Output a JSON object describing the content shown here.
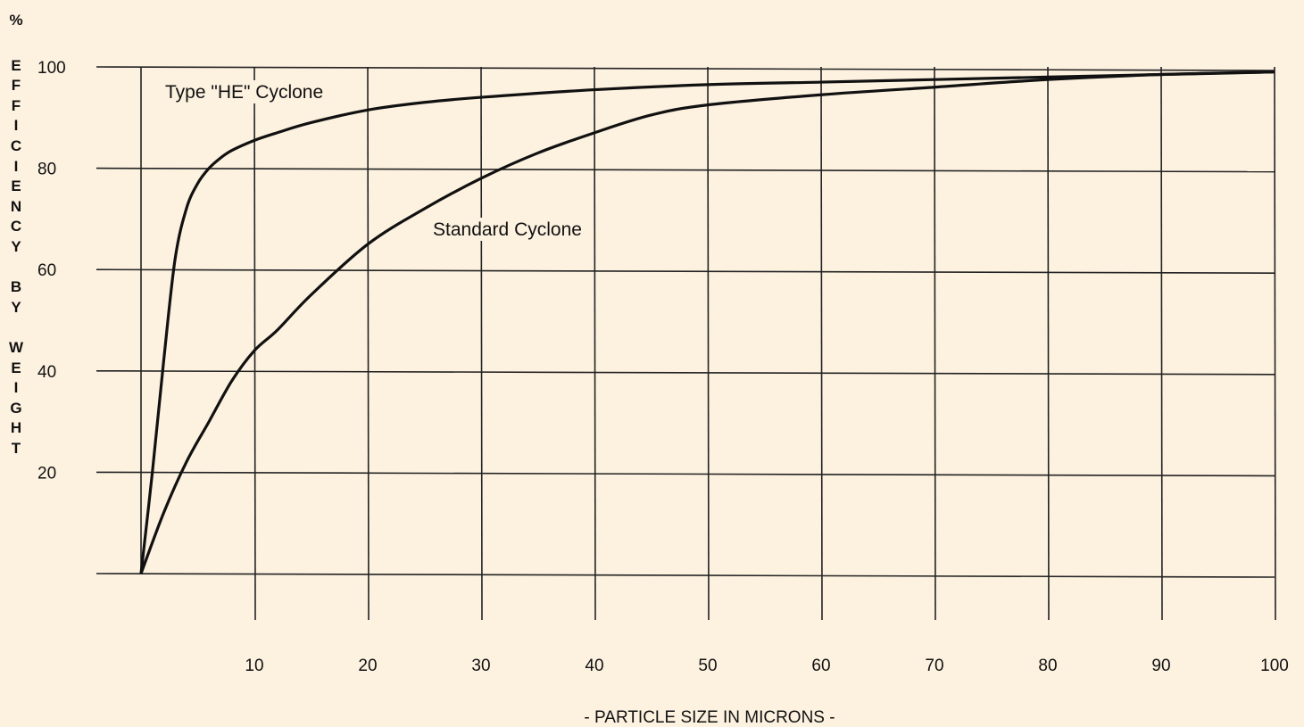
{
  "chart_data": {
    "type": "line",
    "title": "",
    "ylabel_unit": "%",
    "ylabel": "EFFICIENCY BY WEIGHT",
    "ylabel_lines": [
      "E",
      "F",
      "F",
      "I",
      "C",
      "I",
      "E",
      "N",
      "C",
      "Y",
      "",
      "B",
      "Y",
      "",
      "W",
      "E",
      "I",
      "G",
      "H",
      "T"
    ],
    "xlabel": "- PARTICLE SIZE IN MICRONS -",
    "xlim": [
      0,
      100
    ],
    "ylim": [
      0,
      100
    ],
    "x_ticks": [
      10,
      20,
      30,
      40,
      50,
      60,
      70,
      80,
      90,
      100
    ],
    "y_ticks": [
      20,
      40,
      60,
      80,
      100
    ],
    "y_tick_labels": [
      "20",
      "40",
      "60",
      "80",
      "100"
    ],
    "x_tick_labels": [
      "10",
      "20",
      "30",
      "40",
      "50",
      "60",
      "70",
      "80",
      "90",
      "100"
    ],
    "grid": true,
    "series": [
      {
        "name": "Type \"HE\" Cyclone",
        "x": [
          0,
          1,
          2,
          3,
          4,
          5,
          6,
          7,
          8,
          10,
          12,
          15,
          20,
          25,
          30,
          40,
          50,
          60,
          70,
          80,
          90,
          100
        ],
        "y": [
          0,
          20,
          42,
          62,
          72,
          77,
          80,
          82,
          83.5,
          85.5,
          87,
          89,
          91.5,
          93,
          94,
          95.5,
          96.5,
          97,
          97.5,
          98,
          98.5,
          99
        ]
      },
      {
        "name": "Standard Cyclone",
        "x": [
          0,
          2,
          4,
          6,
          8,
          10,
          12,
          15,
          20,
          25,
          30,
          35,
          40,
          45,
          50,
          60,
          70,
          80,
          90,
          100
        ],
        "y": [
          0,
          12,
          22,
          30,
          38,
          44,
          48,
          55,
          65,
          72,
          78,
          83,
          87,
          90.5,
          92.5,
          94.5,
          96,
          97.5,
          98.5,
          99
        ]
      }
    ],
    "annotations": [
      {
        "text": "Type \"HE\" Cyclone",
        "series": 0
      },
      {
        "text": "Standard Cyclone",
        "series": 1
      }
    ]
  }
}
